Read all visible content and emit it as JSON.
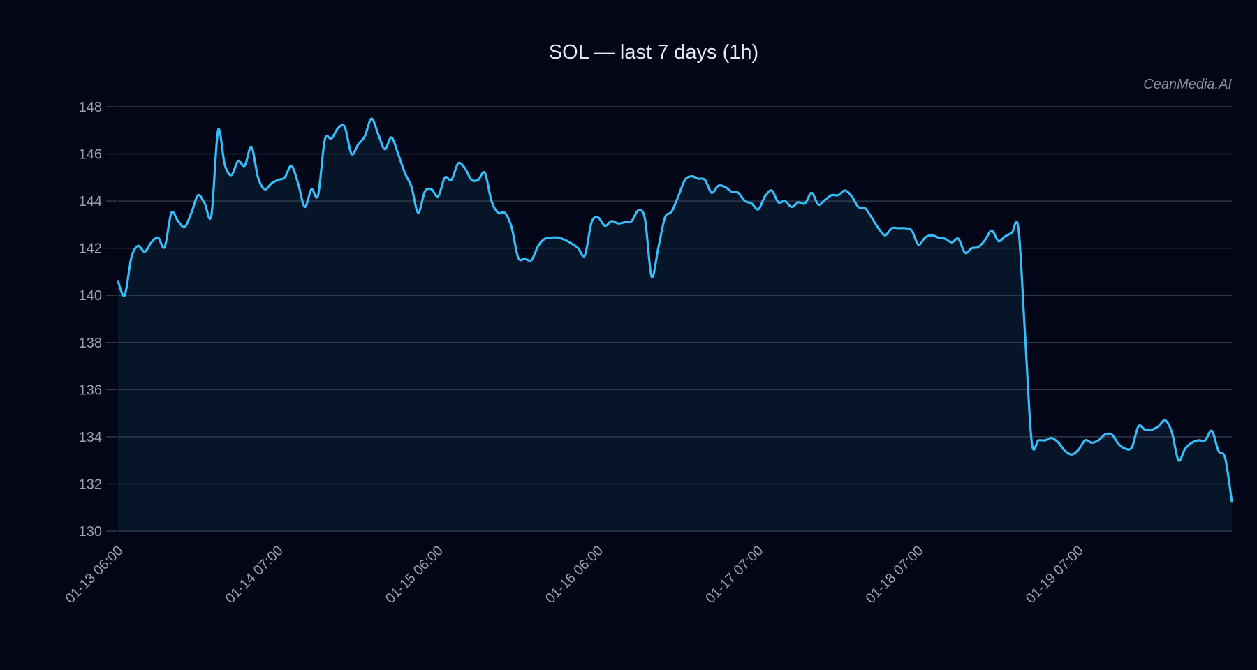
{
  "chart_data": {
    "type": "area",
    "title": "SOL — last 7 days (1h)",
    "watermark": "CeanMedia.AI",
    "xlabel": "",
    "ylabel": "",
    "ylim": [
      130,
      148
    ],
    "y_ticks": [
      130,
      132,
      134,
      136,
      138,
      140,
      142,
      144,
      146,
      148
    ],
    "x_tick_labels": [
      "01-13 06:00",
      "01-14 07:00",
      "01-15 06:00",
      "01-16 06:00",
      "01-17 07:00",
      "01-18 07:00",
      "01-19 07:00"
    ],
    "x_tick_every": 24,
    "grid": true,
    "colors": {
      "line": "#38bdf8",
      "fill": "#061528",
      "grid": "#2f3a4a",
      "background": "#020617"
    },
    "values": [
      140.6,
      140.0,
      141.6,
      142.1,
      141.85,
      142.25,
      142.45,
      142.05,
      143.5,
      143.15,
      142.9,
      143.5,
      144.25,
      143.9,
      143.4,
      147.0,
      145.55,
      145.1,
      145.7,
      145.5,
      146.3,
      145.0,
      144.5,
      144.75,
      144.9,
      145.0,
      145.5,
      144.75,
      143.75,
      144.5,
      144.25,
      146.6,
      146.65,
      147.1,
      147.15,
      146.0,
      146.4,
      146.75,
      147.5,
      146.85,
      146.2,
      146.7,
      146.0,
      145.2,
      144.6,
      143.5,
      144.4,
      144.5,
      144.2,
      145.0,
      144.9,
      145.6,
      145.4,
      144.9,
      144.9,
      145.2,
      144.0,
      143.5,
      143.5,
      142.9,
      141.6,
      141.55,
      141.5,
      142.1,
      142.4,
      142.45,
      142.45,
      142.35,
      142.2,
      142.0,
      141.7,
      143.1,
      143.3,
      142.95,
      143.15,
      143.05,
      143.1,
      143.15,
      143.6,
      143.25,
      140.8,
      142.0,
      143.3,
      143.55,
      144.2,
      144.9,
      145.05,
      144.95,
      144.9,
      144.35,
      144.65,
      144.6,
      144.4,
      144.35,
      144.0,
      143.9,
      143.65,
      144.2,
      144.45,
      143.95,
      144.0,
      143.75,
      143.95,
      143.9,
      144.35,
      143.85,
      144.05,
      144.25,
      144.25,
      144.45,
      144.2,
      143.75,
      143.7,
      143.3,
      142.85,
      142.55,
      142.85,
      142.85,
      142.85,
      142.75,
      142.15,
      142.45,
      142.55,
      142.45,
      142.4,
      142.25,
      142.4,
      141.8,
      142.0,
      142.05,
      142.35,
      142.75,
      142.3,
      142.5,
      142.65,
      142.85,
      138.3,
      133.75,
      133.85,
      133.85,
      133.95,
      133.75,
      133.4,
      133.25,
      133.45,
      133.85,
      133.75,
      133.85,
      134.1,
      134.1,
      133.7,
      133.5,
      133.55,
      134.45,
      134.3,
      134.3,
      134.45,
      134.7,
      134.2,
      133.0,
      133.5,
      133.75,
      133.85,
      133.85,
      134.25,
      133.4,
      133.1,
      131.25
    ]
  }
}
